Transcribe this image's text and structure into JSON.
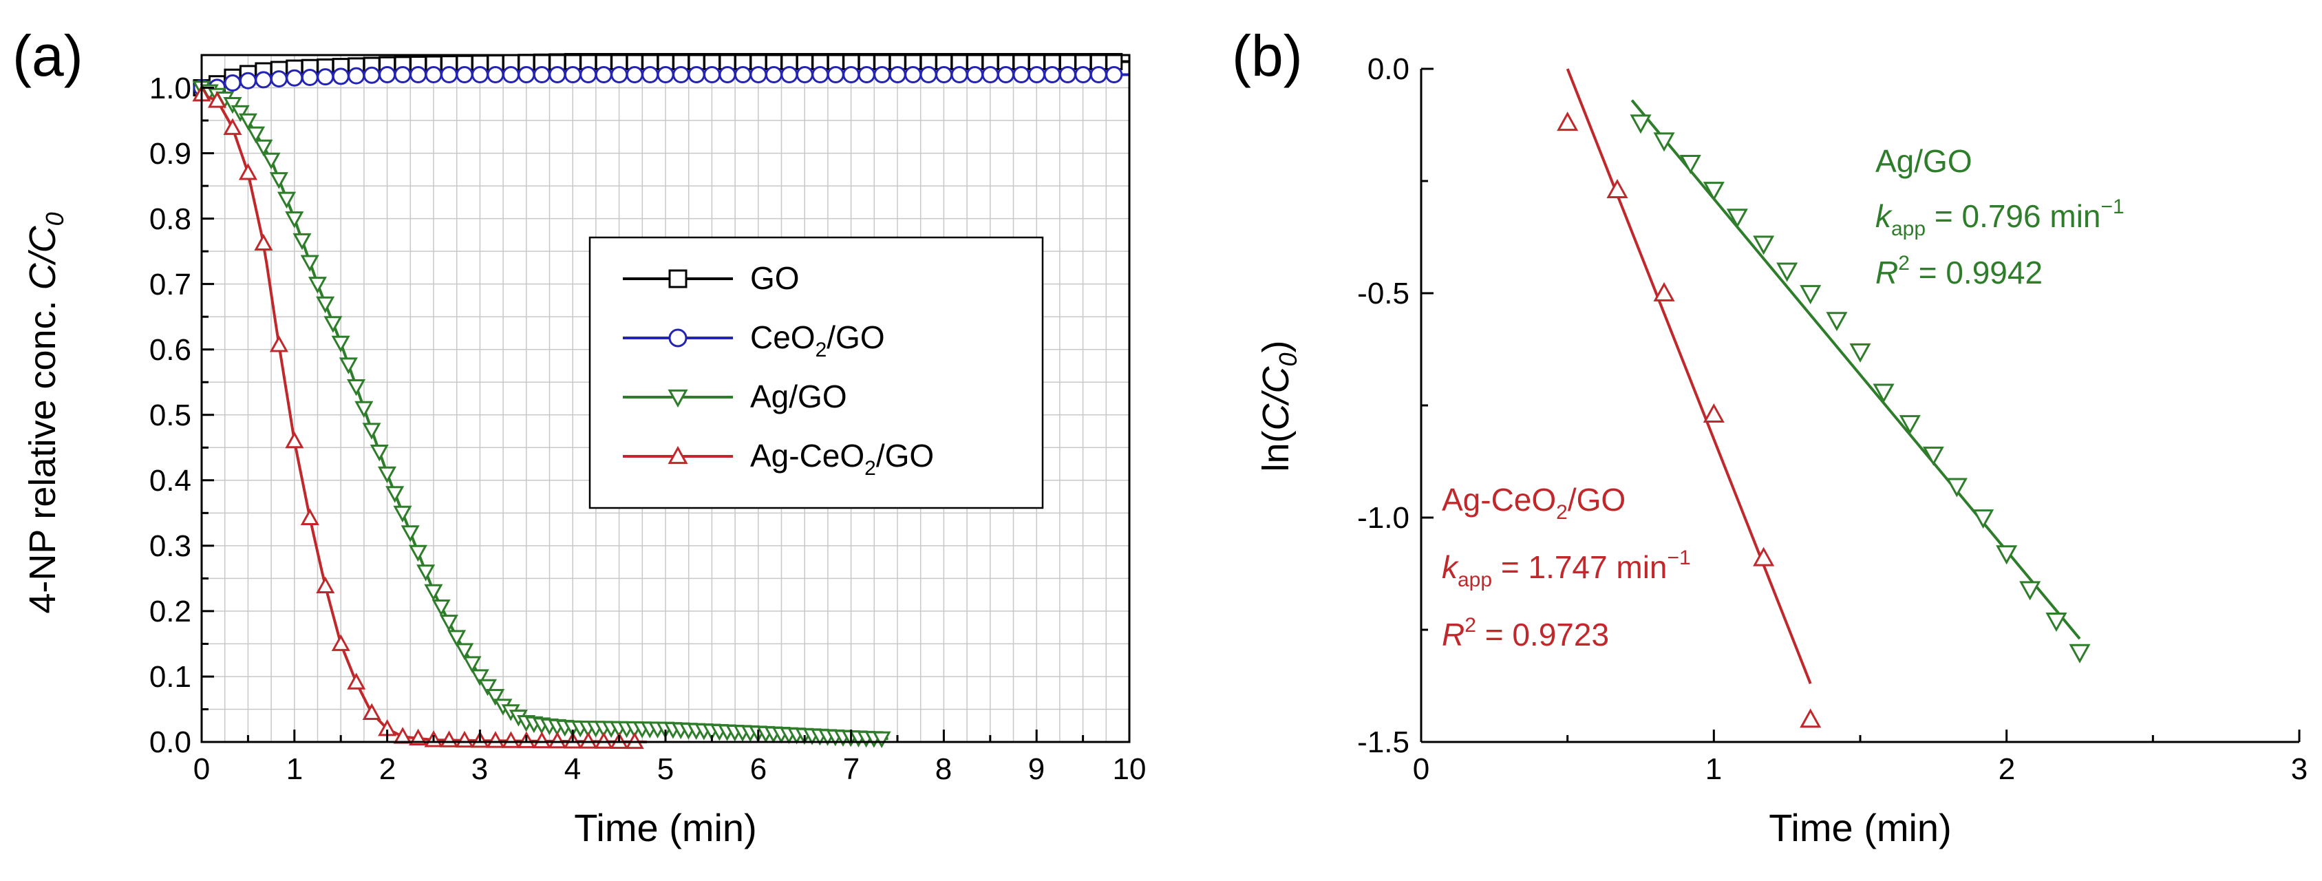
{
  "colors": {
    "GO": "#000000",
    "CeO2/GO": "#2323b4",
    "Ag/GO": "#2e7d2a",
    "Ag-CeO2/GO": "#c0282b"
  },
  "chart_data": [
    {
      "type": "line",
      "panel_label": "(a)",
      "xlabel": "Time (min)",
      "ylabel_prefix": "4-NP relative conc. ",
      "ylabel_var": "C/C",
      "ylabel_sub": "0",
      "xlim": [
        0,
        10
      ],
      "ylim": [
        0,
        1.05
      ],
      "grid": true,
      "x_ticks": [
        "0",
        "1",
        "2",
        "3",
        "4",
        "5",
        "6",
        "7",
        "8",
        "9",
        "10"
      ],
      "y_ticks": [
        "0.0",
        "0.1",
        "0.2",
        "0.3",
        "0.4",
        "0.5",
        "0.6",
        "0.7",
        "0.8",
        "0.9",
        "1.0"
      ],
      "legend_position": "center-right",
      "series": [
        {
          "name": "GO",
          "label_main": "GO",
          "label_sub": "",
          "label_tail": "",
          "marker": "square",
          "color": "#000000",
          "x_start": 0.0,
          "x_end": 10.0,
          "x_step": 0.1667,
          "points": [
            [
              0,
              1.0
            ],
            [
              0.15,
              1.005
            ],
            [
              0.3,
              1.015
            ],
            [
              0.6,
              1.025
            ],
            [
              1.0,
              1.03
            ],
            [
              2.0,
              1.035
            ],
            [
              4.0,
              1.04
            ],
            [
              10.0,
              1.04
            ]
          ]
        },
        {
          "name": "CeO2/GO",
          "label_main": "CeO",
          "label_sub": "2",
          "label_tail": "/GO",
          "marker": "circle",
          "color": "#2323b4",
          "x_start": 0.0,
          "x_end": 10.0,
          "x_step": 0.1667,
          "points": [
            [
              0,
              1.0
            ],
            [
              0.15,
              1.0
            ],
            [
              0.4,
              1.01
            ],
            [
              1.0,
              1.015
            ],
            [
              2.0,
              1.02
            ],
            [
              4.0,
              1.02
            ],
            [
              10.0,
              1.02
            ]
          ]
        },
        {
          "name": "Ag/GO",
          "label_main": "Ag/GO",
          "label_sub": "",
          "label_tail": "",
          "marker": "triangle-down",
          "color": "#2e7d2a",
          "x_start": 0.0,
          "x_end": 7.4,
          "x_step": 0.0833,
          "points": [
            [
              0,
              1.0
            ],
            [
              0.3,
              0.98
            ],
            [
              0.5,
              0.95
            ],
            [
              0.75,
              0.89
            ],
            [
              1.0,
              0.8
            ],
            [
              1.25,
              0.7
            ],
            [
              1.5,
              0.61
            ],
            [
              1.75,
              0.51
            ],
            [
              2.0,
              0.41
            ],
            [
              2.25,
              0.32
            ],
            [
              2.5,
              0.23
            ],
            [
              2.75,
              0.16
            ],
            [
              3.0,
              0.1
            ],
            [
              3.25,
              0.055
            ],
            [
              3.5,
              0.03
            ],
            [
              3.75,
              0.025
            ],
            [
              4.0,
              0.022
            ],
            [
              5.0,
              0.02
            ],
            [
              6.0,
              0.014
            ],
            [
              7.0,
              0.007
            ],
            [
              7.4,
              0.005
            ]
          ]
        },
        {
          "name": "Ag-CeO2/GO",
          "label_main": "Ag-CeO",
          "label_sub": "2",
          "label_tail": "/GO",
          "marker": "triangle-up",
          "color": "#c0282b",
          "x_start": 0.0,
          "x_end": 4.83,
          "x_step": 0.1667,
          "points": [
            [
              0,
              0.99
            ],
            [
              0.17,
              0.98
            ],
            [
              0.33,
              0.94
            ],
            [
              0.5,
              0.87
            ],
            [
              0.67,
              0.76
            ],
            [
              0.83,
              0.61
            ],
            [
              1.0,
              0.46
            ],
            [
              1.17,
              0.34
            ],
            [
              1.33,
              0.24
            ],
            [
              1.5,
              0.15
            ],
            [
              1.67,
              0.09
            ],
            [
              1.83,
              0.045
            ],
            [
              2.0,
              0.02
            ],
            [
              2.17,
              0.008
            ],
            [
              2.5,
              0.003
            ],
            [
              3.0,
              0.002
            ],
            [
              4.83,
              0.0
            ]
          ]
        }
      ]
    },
    {
      "type": "scatter",
      "panel_label": "(b)",
      "xlabel": "Time (min)",
      "ylabel_prefix": "ln(",
      "ylabel_var": "C/C",
      "ylabel_sub": "0",
      "ylabel_suffix": ")",
      "xlim": [
        0,
        3
      ],
      "ylim": [
        -1.5,
        0.0
      ],
      "grid": false,
      "x_ticks": [
        "0",
        "1",
        "2",
        "3"
      ],
      "y_ticks": [
        "0.0",
        "-0.5",
        "-1.0",
        "-1.5"
      ],
      "series": [
        {
          "name": "Ag/GO",
          "marker": "triangle-down",
          "color": "#2e7d2a",
          "x": [
            0.75,
            0.83,
            0.92,
            1.0,
            1.08,
            1.17,
            1.25,
            1.33,
            1.42,
            1.5,
            1.58,
            1.67,
            1.75,
            1.83,
            1.92,
            2.0,
            2.08,
            2.17,
            2.25
          ],
          "y": [
            -0.12,
            -0.16,
            -0.21,
            -0.27,
            -0.33,
            -0.39,
            -0.45,
            -0.5,
            -0.56,
            -0.63,
            -0.72,
            -0.79,
            -0.86,
            -0.93,
            -1.0,
            -1.08,
            -1.16,
            -1.23,
            -1.3
          ],
          "fit": {
            "x0": 0.72,
            "y0": -0.07,
            "x1": 2.25,
            "y1": -1.27
          }
        },
        {
          "name": "Ag-CeO2/GO",
          "marker": "triangle-up",
          "color": "#c0282b",
          "x": [
            0.5,
            0.67,
            0.83,
            1.0,
            1.17,
            1.33
          ],
          "y": [
            -0.12,
            -0.27,
            -0.5,
            -0.77,
            -1.09,
            -1.45
          ],
          "fit": {
            "x0": 0.5,
            "y0": 0.0,
            "x1": 1.33,
            "y1": -1.37
          }
        }
      ],
      "annotations": [
        {
          "series": "Ag/GO",
          "name_main": "Ag/GO",
          "name_sub": "",
          "name_tail": "",
          "k_text": " = 0.796 min",
          "r2_text": " = 0.9942"
        },
        {
          "series": "Ag-CeO2/GO",
          "name_main": "Ag-CeO",
          "name_sub": "2",
          "name_tail": "/GO",
          "k_text": " = 1.747 min",
          "r2_text": " = 0.9723"
        }
      ],
      "k_symbol": "k",
      "k_sub": "app",
      "k_exp": "−1",
      "r_symbol": "R",
      "r_exp": "2"
    }
  ]
}
